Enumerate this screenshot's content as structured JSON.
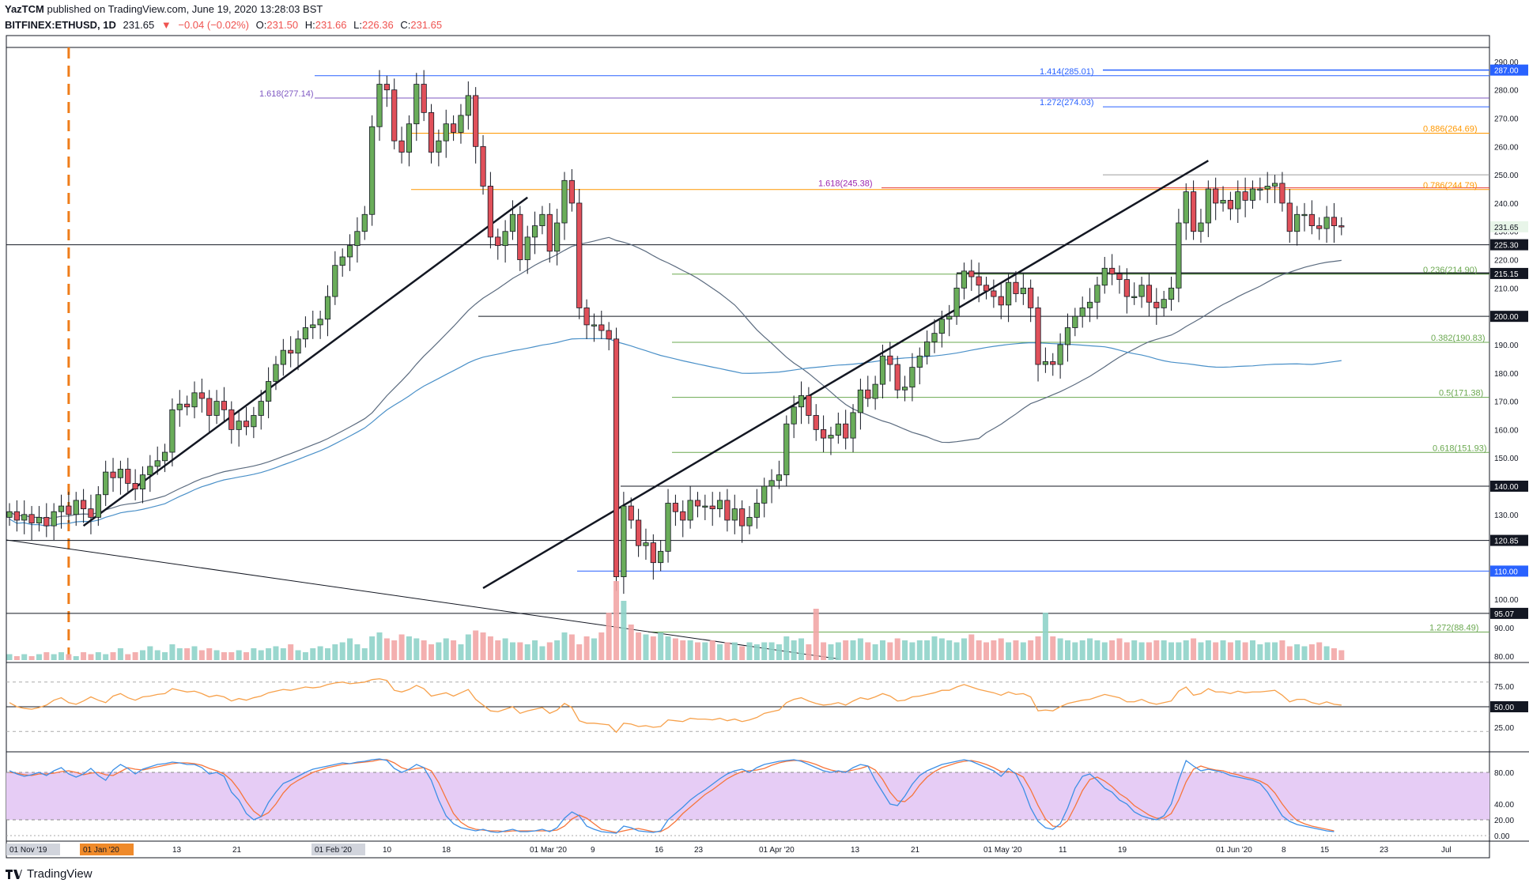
{
  "header": {
    "publisher": "YazTCM",
    "published_text": "published on TradingView.com, June 19, 2020 13:28:03 BST",
    "symbol": "BITFINEX:ETHUSD, 1D",
    "last": "231.65",
    "change": "−0.04 (−0.02%)",
    "o_label": "O:",
    "o_value": "231.50",
    "h_label": "H:",
    "h_value": "231.66",
    "l_label": "L:",
    "l_value": "226.36",
    "c_label": "C:",
    "c_value": "231.65"
  },
  "footer": {
    "brand": "TradingView"
  },
  "colors": {
    "up": "#6aad5a",
    "down": "#e0505a",
    "rsi": "#f7a14b",
    "stoch_k": "#3d8fe6",
    "stoch_d": "#f7753b",
    "band": "#e6ccf5"
  },
  "chart_data": {
    "type": "candlestick",
    "y_axis_ticks": [
      "290.00",
      "280.00",
      "270.00",
      "260.00",
      "250.00",
      "240.00",
      "230.00",
      "220.00",
      "210.00",
      "200.00",
      "190.00",
      "180.00",
      "170.00",
      "160.00",
      "150.00",
      "140.00",
      "130.00",
      "120.00",
      "110.00",
      "100.00",
      "90.00",
      "80.00"
    ],
    "ylim": [
      78,
      295
    ],
    "price_labels": [
      {
        "text": "287.00",
        "value": 287.0,
        "style": "blue"
      },
      {
        "text": "231.65",
        "value": 231.65,
        "style": "last"
      },
      {
        "text": "225.30",
        "value": 225.3,
        "style": "dark"
      },
      {
        "text": "215.15",
        "value": 215.15,
        "style": "dark"
      },
      {
        "text": "200.00",
        "value": 200.0,
        "style": "dark"
      },
      {
        "text": "140.00",
        "value": 140.0,
        "style": "dark"
      },
      {
        "text": "120.85",
        "value": 120.85,
        "style": "dark"
      },
      {
        "text": "110.00",
        "value": 110.0,
        "style": "blue"
      },
      {
        "text": "95.07",
        "value": 95.07,
        "style": "dark"
      }
    ],
    "x_labels": [
      {
        "text": "01 Nov '19",
        "boxed": true
      },
      {
        "text": "01 Jan '20",
        "boxed": "orange"
      },
      {
        "text": "13"
      },
      {
        "text": "21"
      },
      {
        "text": "01 Feb '20",
        "boxed": true
      },
      {
        "text": "10"
      },
      {
        "text": "18"
      },
      {
        "text": "01 Mar '20"
      },
      {
        "text": "9"
      },
      {
        "text": "16"
      },
      {
        "text": "23"
      },
      {
        "text": "01 Apr '20"
      },
      {
        "text": "13"
      },
      {
        "text": "21"
      },
      {
        "text": "01 May '20"
      },
      {
        "text": "11"
      },
      {
        "text": "19"
      },
      {
        "text": "01 Jun '20"
      },
      {
        "text": "8"
      },
      {
        "text": "15"
      },
      {
        "text": "23"
      },
      {
        "text": "Jul"
      }
    ],
    "fib_labels": [
      {
        "text": "1.414(285.01)",
        "value": 285.01,
        "color": "#2962ff"
      },
      {
        "text": "1.618(277.14)",
        "value": 277.14,
        "color": "#7e57c2"
      },
      {
        "text": "1.272(274.03)",
        "value": 274.03,
        "color": "#2962ff"
      },
      {
        "text": "0.886(264.69)",
        "value": 264.69,
        "color": "#ff9800"
      },
      {
        "text": "1.618(245.38)",
        "value": 245.38,
        "color": "#9c27b0"
      },
      {
        "text": "0.786(244.79)",
        "value": 244.79,
        "color": "#ff9800"
      },
      {
        "text": "0.236(214.90)",
        "value": 214.9,
        "color": "#6aa84f"
      },
      {
        "text": "0.382(190.83)",
        "value": 190.83,
        "color": "#6aa84f"
      },
      {
        "text": "0.5(171.38)",
        "value": 171.38,
        "color": "#6aa84f"
      },
      {
        "text": "0.618(151.93)",
        "value": 151.93,
        "color": "#6aa84f"
      },
      {
        "text": "1.272(88.49)",
        "value": 88.49,
        "color": "#6aa84f"
      }
    ],
    "rsi_axis_ticks": [
      "75.00",
      "50.00",
      "25.00"
    ],
    "stoch_axis_ticks": [
      "80.00",
      "40.00",
      "20.00",
      "0.00"
    ],
    "close_series": [
      131,
      128,
      130,
      127,
      129,
      126,
      131,
      133,
      130,
      135,
      132,
      129,
      137,
      145,
      143,
      146,
      141,
      139,
      144,
      147,
      149,
      152,
      167,
      169,
      168,
      173,
      171,
      165,
      170,
      167,
      160,
      163,
      161,
      165,
      170,
      177,
      183,
      188,
      187,
      192,
      196,
      197,
      199,
      207,
      218,
      221,
      225,
      230,
      236,
      267,
      282,
      280,
      262,
      258,
      268,
      282,
      272,
      258,
      262,
      268,
      265,
      271,
      278,
      260,
      246,
      228,
      225,
      230,
      236,
      220,
      228,
      232,
      236,
      223,
      233,
      248,
      240,
      203,
      197,
      197,
      195,
      192,
      108,
      133,
      128,
      119,
      120,
      113,
      117,
      134,
      131,
      128,
      135,
      133,
      133,
      132,
      135,
      128,
      132,
      126,
      129,
      134,
      140,
      142,
      144,
      162,
      168,
      172,
      165,
      160,
      157,
      158,
      162,
      157,
      166,
      174,
      171,
      176,
      186,
      183,
      174,
      175,
      182,
      186,
      191,
      194,
      199,
      200,
      210,
      216,
      214,
      211,
      209,
      207,
      204,
      212,
      208,
      210,
      203,
      183,
      184,
      183,
      190,
      196,
      200,
      203,
      205,
      211,
      217,
      215,
      213,
      207,
      207,
      211,
      205,
      203,
      206,
      210,
      233,
      244,
      230,
      233,
      245,
      240,
      241,
      238,
      244,
      241,
      245,
      245,
      246,
      247,
      240,
      230,
      236,
      236,
      232,
      231,
      235,
      232,
      231.65
    ],
    "volume_series": [
      3,
      2,
      3,
      2,
      3,
      4,
      3,
      4,
      3,
      2,
      4,
      3,
      4,
      3,
      4,
      6,
      3,
      4,
      5,
      7,
      5,
      4,
      8,
      6,
      6,
      7,
      5,
      6,
      5,
      4,
      4,
      5,
      4,
      6,
      5,
      6,
      7,
      6,
      8,
      5,
      4,
      6,
      7,
      6,
      8,
      9,
      11,
      8,
      6,
      12,
      14,
      11,
      10,
      13,
      12,
      11,
      10,
      8,
      9,
      11,
      10,
      8,
      13,
      15,
      14,
      12,
      10,
      11,
      9,
      9,
      8,
      10,
      7,
      9,
      10,
      14,
      13,
      8,
      12,
      11,
      14,
      24,
      40,
      30,
      18,
      14,
      13,
      12,
      14,
      12,
      11,
      10,
      10,
      9,
      9,
      10,
      8,
      9,
      9,
      7,
      9,
      8,
      9,
      9,
      8,
      12,
      10,
      11,
      8,
      26,
      9,
      8,
      9,
      10,
      10,
      11,
      9,
      8,
      10,
      9,
      11,
      10,
      9,
      10,
      10,
      12,
      11,
      10,
      9,
      11,
      13,
      10,
      9,
      10,
      11,
      9,
      10,
      9,
      10,
      12,
      24,
      12,
      11,
      10,
      9,
      10,
      11,
      10,
      9,
      10,
      11,
      9,
      10,
      9,
      9,
      10,
      10,
      9,
      9,
      10,
      11,
      9,
      10,
      9,
      10,
      9,
      10,
      9,
      10,
      8,
      9,
      9,
      10,
      7,
      8,
      7,
      8,
      9,
      7,
      6,
      5
    ],
    "rsi_series": [
      55,
      50,
      48,
      47,
      49,
      52,
      58,
      61,
      55,
      53,
      57,
      62,
      58,
      55,
      63,
      66,
      61,
      58,
      62,
      63,
      65,
      66,
      72,
      70,
      68,
      69,
      66,
      62,
      64,
      62,
      57,
      60,
      58,
      61,
      63,
      67,
      69,
      71,
      70,
      72,
      74,
      73,
      74,
      77,
      79,
      80,
      78,
      79,
      80,
      83,
      84,
      82,
      70,
      68,
      71,
      76,
      72,
      63,
      65,
      67,
      63,
      67,
      71,
      59,
      52,
      45,
      44,
      47,
      50,
      42,
      45,
      47,
      49,
      42,
      46,
      54,
      49,
      33,
      30,
      30,
      29,
      28,
      19,
      30,
      29,
      26,
      27,
      25,
      26,
      34,
      33,
      32,
      36,
      35,
      35,
      34,
      36,
      33,
      35,
      32,
      34,
      37,
      42,
      44,
      46,
      55,
      59,
      61,
      57,
      54,
      52,
      53,
      55,
      52,
      57,
      61,
      59,
      62,
      66,
      63,
      57,
      58,
      62,
      63,
      65,
      67,
      70,
      70,
      74,
      77,
      74,
      71,
      69,
      67,
      64,
      68,
      65,
      66,
      62,
      45,
      46,
      45,
      50,
      54,
      56,
      58,
      59,
      62,
      65,
      63,
      61,
      56,
      56,
      59,
      55,
      53,
      55,
      57,
      69,
      74,
      64,
      66,
      72,
      68,
      68,
      66,
      69,
      67,
      68,
      68,
      69,
      70,
      64,
      56,
      59,
      59,
      55,
      53,
      56,
      53,
      52
    ],
    "stoch_k_series": [
      82,
      78,
      75,
      77,
      80,
      76,
      82,
      86,
      78,
      74,
      78,
      85,
      76,
      70,
      83,
      90,
      85,
      78,
      84,
      87,
      90,
      91,
      93,
      92,
      90,
      90,
      86,
      78,
      80,
      75,
      55,
      45,
      28,
      20,
      24,
      42,
      55,
      66,
      70,
      75,
      80,
      84,
      86,
      88,
      90,
      92,
      91,
      93,
      94,
      96,
      97,
      95,
      85,
      80,
      84,
      90,
      86,
      70,
      45,
      25,
      15,
      10,
      8,
      6,
      8,
      5,
      4,
      6,
      8,
      5,
      5,
      6,
      8,
      5,
      10,
      22,
      30,
      25,
      12,
      8,
      5,
      4,
      3,
      12,
      10,
      6,
      5,
      4,
      6,
      20,
      28,
      36,
      45,
      52,
      58,
      65,
      72,
      78,
      82,
      84,
      80,
      86,
      90,
      92,
      94,
      95,
      96,
      94,
      90,
      86,
      82,
      80,
      82,
      80,
      86,
      90,
      88,
      70,
      55,
      40,
      38,
      50,
      65,
      76,
      82,
      86,
      90,
      92,
      94,
      96,
      94,
      90,
      86,
      82,
      75,
      85,
      78,
      60,
      35,
      18,
      10,
      8,
      15,
      35,
      60,
      75,
      78,
      70,
      60,
      55,
      45,
      40,
      30,
      25,
      22,
      20,
      25,
      40,
      70,
      95,
      88,
      82,
      84,
      82,
      80,
      76,
      74,
      72,
      70,
      66,
      55,
      40,
      25,
      18,
      14,
      12,
      10,
      8,
      6,
      5
    ],
    "stoch_d_series": [
      80,
      79,
      77,
      76,
      78,
      78,
      79,
      81,
      82,
      80,
      77,
      79,
      80,
      77,
      76,
      81,
      86,
      84,
      83,
      85,
      87,
      89,
      91,
      92,
      92,
      91,
      89,
      85,
      82,
      78,
      70,
      58,
      43,
      31,
      24,
      29,
      40,
      54,
      64,
      70,
      75,
      80,
      83,
      86,
      88,
      90,
      91,
      92,
      93,
      94,
      96,
      96,
      92,
      86,
      83,
      85,
      86,
      82,
      67,
      47,
      28,
      17,
      11,
      8,
      7,
      6,
      6,
      5,
      6,
      6,
      6,
      6,
      6,
      6,
      7,
      12,
      21,
      26,
      22,
      15,
      8,
      6,
      4,
      6,
      8,
      9,
      7,
      5,
      5,
      10,
      18,
      28,
      36,
      44,
      52,
      58,
      65,
      72,
      77,
      81,
      82,
      83,
      85,
      89,
      92,
      94,
      95,
      95,
      93,
      90,
      86,
      83,
      81,
      81,
      83,
      85,
      88,
      83,
      71,
      55,
      44,
      43,
      51,
      64,
      74,
      81,
      86,
      89,
      92,
      94,
      95,
      93,
      90,
      86,
      81,
      81,
      79,
      74,
      58,
      38,
      21,
      12,
      11,
      19,
      37,
      57,
      71,
      74,
      69,
      62,
      53,
      47,
      38,
      32,
      26,
      22,
      22,
      28,
      45,
      68,
      84,
      88,
      85,
      83,
      82,
      79,
      77,
      74,
      72,
      69,
      64,
      54,
      40,
      28,
      19,
      15,
      12,
      10,
      8,
      6
    ]
  }
}
